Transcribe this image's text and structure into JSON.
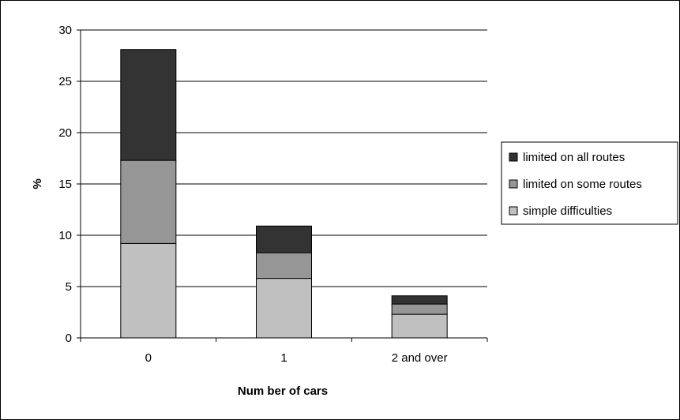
{
  "chart_data": {
    "type": "bar",
    "stacked": true,
    "categories": [
      "0",
      "1",
      "2 and over"
    ],
    "series": [
      {
        "name": "simple difficulties",
        "values": [
          9.2,
          5.8,
          2.3
        ],
        "color": "#c0c0c0"
      },
      {
        "name": "limited on some routes",
        "values": [
          8.1,
          2.5,
          1.0
        ],
        "color": "#969696"
      },
      {
        "name": "limited on all routes",
        "values": [
          10.8,
          2.6,
          0.8
        ],
        "color": "#333333"
      }
    ],
    "legend_order": [
      "limited on all routes",
      "limited on some routes",
      "simple difficulties"
    ],
    "xlabel": "Num ber of cars",
    "ylabel": "%",
    "ylim": [
      0,
      30
    ],
    "yticks": [
      0,
      5,
      10,
      15,
      20,
      25,
      30
    ],
    "grid": true,
    "legend_position": "right"
  }
}
